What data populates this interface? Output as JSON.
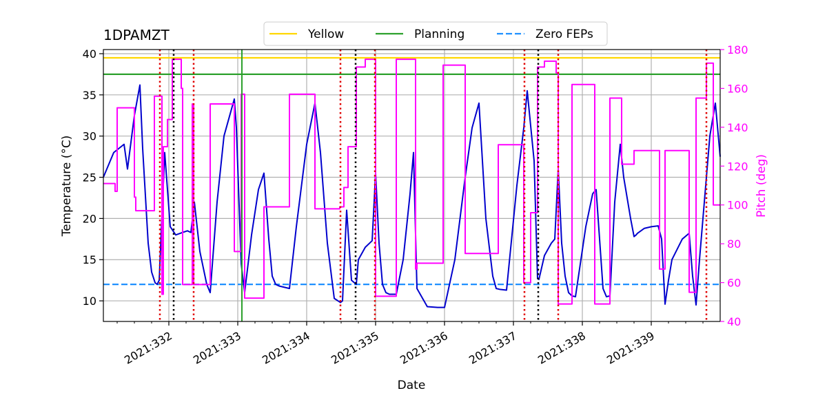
{
  "chart_data": {
    "type": "line",
    "title": "1DPAMZT",
    "xlabel": "Date",
    "ylabel": "Temperature ($^\\circ$C)",
    "ylabel_display": "Temperature (°C)",
    "y2label": "Pitch (deg)",
    "xlim": [
      331.05,
      340.0
    ],
    "ylim": [
      7.5,
      40.5
    ],
    "y2lim": [
      40,
      180
    ],
    "x_ticks": [
      332,
      333,
      334,
      335,
      336,
      337,
      338,
      339
    ],
    "x_tick_labels": [
      "2021:332",
      "2021:333",
      "2021:334",
      "2021:335",
      "2021:336",
      "2021:337",
      "2021:338",
      "2021:339"
    ],
    "y_ticks": [
      10,
      15,
      20,
      25,
      30,
      35,
      40
    ],
    "y_tick_labels": [
      "10",
      "15",
      "20",
      "25",
      "30",
      "35",
      "40"
    ],
    "y2_ticks": [
      40,
      60,
      80,
      100,
      120,
      140,
      160,
      180
    ],
    "y2_tick_labels": [
      "40",
      "60",
      "80",
      "100",
      "120",
      "140",
      "160",
      "180"
    ],
    "grid": true,
    "legend_position": "top-center",
    "legend": [
      {
        "label": "Yellow",
        "color": "#FFD700",
        "style": "solid"
      },
      {
        "label": "Planning",
        "color": "#2ca02c",
        "style": "solid"
      },
      {
        "label": "Zero FEPs",
        "color": "#1E90FF",
        "style": "dashed"
      }
    ],
    "hlines": [
      {
        "name": "Yellow",
        "y": 39.5,
        "color": "#FFD700"
      },
      {
        "name": "Planning",
        "y": 37.5,
        "color": "#2ca02c"
      },
      {
        "name": "Zero FEPs",
        "y": 12.0,
        "color": "#1E90FF",
        "style": "dashed"
      }
    ],
    "vlines_red_dotted": [
      331.87,
      332.36,
      334.49,
      334.99,
      337.16,
      337.65,
      339.8
    ],
    "vlines_black_dotted": [
      332.07,
      334.71,
      337.36
    ],
    "vline_green_solid": 333.06,
    "series": [
      {
        "name": "1DPAMZT",
        "axis": "left",
        "color": "#0000CD",
        "x": [
          331.05,
          331.2,
          331.35,
          331.4,
          331.5,
          331.58,
          331.62,
          331.7,
          331.75,
          331.8,
          331.83,
          331.86,
          331.94,
          332.02,
          332.1,
          332.2,
          332.27,
          332.32,
          332.37,
          332.45,
          332.55,
          332.6,
          332.7,
          332.8,
          332.95,
          332.98,
          333.05,
          333.1,
          333.2,
          333.3,
          333.38,
          333.45,
          333.5,
          333.55,
          333.6,
          333.75,
          333.85,
          334.0,
          334.12,
          334.2,
          334.3,
          334.4,
          334.49,
          334.52,
          334.58,
          334.65,
          334.72,
          334.75,
          334.85,
          334.95,
          335.0,
          335.05,
          335.1,
          335.15,
          335.2,
          335.3,
          335.4,
          335.5,
          335.55,
          335.6,
          335.75,
          335.9,
          336.0,
          336.15,
          336.3,
          336.4,
          336.5,
          336.6,
          336.7,
          336.75,
          336.8,
          336.9,
          337.05,
          337.15,
          337.2,
          337.3,
          337.35,
          337.37,
          337.45,
          337.55,
          337.6,
          337.65,
          337.7,
          337.75,
          337.8,
          337.85,
          337.9,
          338.05,
          338.15,
          338.2,
          338.3,
          338.35,
          338.4,
          338.47,
          338.55,
          338.6,
          338.7,
          338.75,
          338.78,
          338.8,
          338.9,
          339.0,
          339.1,
          339.15,
          339.2,
          339.25,
          339.3,
          339.45,
          339.55,
          339.6,
          339.65,
          339.7,
          339.8,
          339.85,
          339.93,
          340.0
        ],
        "y": [
          25.0,
          28.0,
          29.0,
          26.0,
          32.5,
          36.2,
          28.5,
          17.0,
          13.5,
          12.2,
          12.0,
          12.5,
          28.0,
          19.0,
          18.0,
          18.3,
          18.5,
          18.3,
          22.0,
          16.0,
          12.0,
          11.0,
          22.0,
          30.0,
          34.5,
          31.0,
          14.5,
          11.0,
          18.0,
          23.5,
          25.5,
          17.5,
          13.0,
          12.0,
          11.8,
          11.5,
          19.0,
          29.0,
          34.0,
          28.0,
          17.0,
          10.3,
          9.8,
          10.0,
          21.0,
          12.5,
          12.0,
          15.0,
          16.5,
          17.3,
          25.5,
          17.0,
          12.0,
          11.0,
          10.8,
          10.8,
          15.0,
          23.0,
          28.0,
          11.5,
          9.3,
          9.2,
          9.2,
          15.0,
          25.0,
          31.0,
          34.0,
          20.0,
          13.0,
          11.5,
          11.4,
          11.3,
          24.0,
          31.0,
          35.5,
          27.0,
          12.7,
          12.6,
          15.5,
          17.0,
          17.5,
          26.0,
          17.0,
          13.0,
          11.0,
          10.6,
          10.5,
          19.0,
          23.0,
          23.5,
          11.5,
          10.5,
          10.6,
          22.0,
          29.0,
          25.0,
          20.0,
          17.8,
          18.0,
          18.2,
          18.8,
          19.0,
          19.1,
          17.5,
          9.6,
          12.5,
          15.0,
          17.5,
          18.2,
          13.0,
          9.5,
          15.0,
          25.0,
          30.0,
          34.0,
          27.5
        ]
      },
      {
        "name": "Pitch",
        "axis": "right",
        "color": "#FF00FF",
        "x": [
          331.05,
          331.22,
          331.22,
          331.25,
          331.25,
          331.5,
          331.5,
          331.52,
          331.52,
          331.55,
          331.55,
          331.79,
          331.79,
          331.9,
          331.9,
          331.92,
          331.92,
          331.98,
          331.98,
          332.05,
          332.05,
          332.18,
          332.18,
          332.2,
          332.2,
          332.32,
          332.32,
          332.34,
          332.34,
          332.36,
          332.36,
          332.6,
          332.6,
          332.95,
          332.95,
          333.05,
          333.05,
          333.1,
          333.1,
          333.38,
          333.38,
          333.4,
          333.4,
          333.75,
          333.75,
          334.12,
          334.12,
          334.48,
          334.48,
          334.54,
          334.54,
          334.6,
          334.6,
          334.72,
          334.72,
          334.78,
          334.78,
          334.85,
          334.85,
          335.0,
          335.0,
          335.3,
          335.3,
          335.58,
          335.58,
          335.6,
          335.6,
          335.98,
          335.98,
          336.3,
          336.3,
          336.78,
          336.78,
          337.15,
          337.15,
          337.25,
          337.25,
          337.35,
          337.35,
          337.45,
          337.45,
          337.62,
          337.62,
          337.65,
          337.65,
          337.85,
          337.85,
          338.18,
          338.18,
          338.4,
          338.4,
          338.57,
          338.57,
          338.75,
          338.75,
          339.12,
          339.12,
          339.2,
          339.2,
          339.55,
          339.55,
          339.65,
          339.65,
          339.8,
          339.8,
          339.9,
          339.9,
          340.0
        ],
        "y": [
          111,
          111,
          107,
          107,
          150,
          150,
          104,
          104,
          97,
          97,
          97,
          97,
          156,
          156,
          54,
          54,
          130,
          130,
          144,
          144,
          175,
          175,
          160,
          160,
          59,
          59,
          59,
          59,
          152,
          152,
          59,
          59,
          152,
          152,
          76,
          76,
          157,
          157,
          52,
          52,
          99,
          99,
          99,
          99,
          157,
          157,
          98,
          98,
          99,
          99,
          109,
          109,
          130,
          130,
          171,
          171,
          171,
          171,
          175,
          175,
          53,
          53,
          175,
          175,
          67,
          67,
          70,
          70,
          172,
          172,
          75,
          75,
          131,
          131,
          60,
          60,
          96,
          96,
          171,
          171,
          174,
          174,
          168,
          168,
          49,
          49,
          162,
          162,
          49,
          49,
          155,
          155,
          121,
          121,
          128,
          128,
          67,
          67,
          128,
          128,
          55,
          55,
          155,
          155,
          173,
          173,
          100,
          100
        ]
      }
    ]
  }
}
